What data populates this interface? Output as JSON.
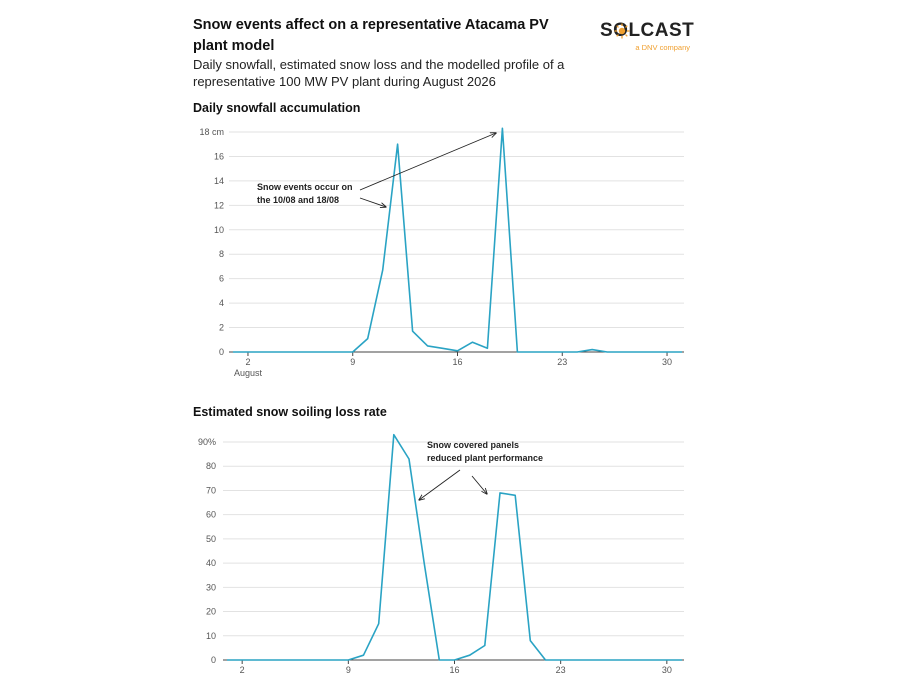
{
  "header": {
    "title": "Snow events affect on a representative Atacama PV plant model",
    "subtitle": "Daily snowfall, estimated snow loss and the modelled profile of a representative 100 MW PV plant during August 2026"
  },
  "logo": {
    "wordmark": "SOLCAST",
    "tagline": "a DNV company",
    "accent_color": "#f0a030"
  },
  "colors": {
    "series": "#2aa3c4",
    "grid": "#e2e2e2"
  },
  "chart_data": [
    {
      "type": "line",
      "title": "Daily snowfall accumulation",
      "xlabel": "",
      "ylabel": "",
      "unit": "cm",
      "x": [
        1,
        2,
        3,
        4,
        5,
        6,
        7,
        8,
        9,
        10,
        11,
        12,
        13,
        14,
        15,
        16,
        17,
        18,
        19,
        20,
        21,
        22,
        23,
        24,
        25,
        26,
        27,
        28,
        29,
        30,
        31
      ],
      "values": [
        0,
        0,
        0,
        0,
        0,
        0,
        0,
        0,
        0,
        1.1,
        6.7,
        17.0,
        1.7,
        0.5,
        0.3,
        0.1,
        0.8,
        0.3,
        18.3,
        0,
        0,
        0,
        0,
        0,
        0.2,
        0,
        0,
        0,
        0,
        0,
        0
      ],
      "xlim": [
        1,
        31
      ],
      "ylim": [
        0,
        18
      ],
      "x_ticks": [
        2,
        9,
        16,
        23,
        30
      ],
      "x_tick_labels": [
        "2",
        "9",
        "16",
        "23",
        "30"
      ],
      "x_month_label": "August",
      "y_ticks": [
        0,
        2,
        4,
        6,
        8,
        10,
        12,
        14,
        16,
        18
      ],
      "y_tick_labels": [
        "0",
        "2",
        "4",
        "6",
        "8",
        "10",
        "12",
        "14",
        "16",
        "18 cm"
      ],
      "grid": true,
      "annotations": [
        {
          "lines": [
            "Snow events occur on",
            "the 10/08 and 18/08"
          ],
          "points_to_days": [
            11,
            18
          ]
        }
      ]
    },
    {
      "type": "line",
      "title": "Estimated snow soiling loss rate",
      "xlabel": "",
      "ylabel": "",
      "unit": "%",
      "x": [
        1,
        2,
        3,
        4,
        5,
        6,
        7,
        8,
        9,
        10,
        11,
        12,
        13,
        14,
        15,
        16,
        17,
        18,
        19,
        20,
        21,
        22,
        23,
        24,
        25,
        26,
        27,
        28,
        29,
        30,
        31
      ],
      "values": [
        0,
        0,
        0,
        0,
        0,
        0,
        0,
        0,
        0,
        2,
        15,
        93,
        83,
        40,
        0,
        0,
        2,
        6,
        69,
        68,
        8,
        0,
        0,
        0,
        0,
        0,
        0,
        0,
        0,
        0,
        0
      ],
      "xlim": [
        1,
        31
      ],
      "ylim": [
        0,
        90
      ],
      "x_ticks": [
        2,
        9,
        16,
        23,
        30
      ],
      "x_tick_labels": [
        "2",
        "9",
        "16",
        "23",
        "30"
      ],
      "y_ticks": [
        0,
        10,
        20,
        30,
        40,
        50,
        60,
        70,
        80,
        90
      ],
      "y_tick_labels": [
        "0",
        "10",
        "20",
        "30",
        "40",
        "50",
        "60",
        "70",
        "80",
        "90%"
      ],
      "grid": true,
      "annotations": [
        {
          "lines": [
            "Snow covered panels",
            "reduced plant performance"
          ],
          "points_to_days": [
            13,
            18
          ]
        }
      ]
    }
  ]
}
